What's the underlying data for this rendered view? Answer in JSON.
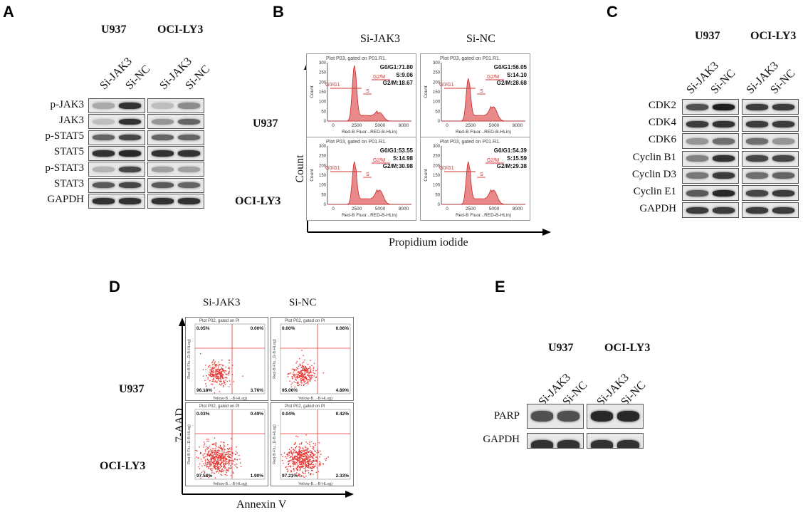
{
  "panelA": {
    "letter": "A",
    "cell_lines": [
      "U937",
      "OCI-LY3"
    ],
    "lanes": [
      "Si-JAK3",
      "Si-NC",
      "Si-JAK3",
      "Si-NC"
    ],
    "rows": [
      "p-JAK3",
      "JAK3",
      "p-STAT5",
      "STAT5",
      "p-STAT3",
      "STAT3",
      "GAPDH"
    ]
  },
  "panelB": {
    "letter": "B",
    "columns": [
      "Si-JAK3",
      "Si-NC"
    ],
    "rows": [
      "U937",
      "OCI-LY3"
    ],
    "y_axis": "Count",
    "x_axis": "Propidium iodide",
    "plot_title": "Plot P03, gated on P01.R1.",
    "plot_xlabel": "Red-B Fluor...RED-B-HLin)",
    "plot_ylabel": "Count",
    "x_ticks": [
      "0",
      "2500",
      "5000",
      "8000"
    ],
    "y_ticks": [
      "0",
      "50",
      "100",
      "150",
      "200",
      "250",
      "300"
    ],
    "gate_labels": [
      "G0/G1",
      "S",
      "G2/M"
    ],
    "stats": [
      [
        "G0/G1:71.80",
        "S:9.06",
        "G2/M:18.67"
      ],
      [
        "G0/G1:56.05",
        "S:14.10",
        "G2/M:28.68"
      ],
      [
        "G0/G1:53.55",
        "S:14.98",
        "G2/M:30.98"
      ],
      [
        "G0/G1:54.39",
        "S:15.59",
        "G2/M:29.38"
      ]
    ]
  },
  "panelC": {
    "letter": "C",
    "cell_lines": [
      "U937",
      "OCI-LY3"
    ],
    "lanes": [
      "Si-JAK3",
      "Si-NC",
      "Si-JAK3",
      "Si-NC"
    ],
    "rows": [
      "CDK2",
      "CDK4",
      "CDK6",
      "Cyclin B1",
      "Cyclin D3",
      "Cyclin E1",
      "GAPDH"
    ]
  },
  "panelD": {
    "letter": "D",
    "columns": [
      "Si-JAK3",
      "Si-NC"
    ],
    "rows": [
      "U937",
      "OCI-LY3"
    ],
    "y_axis": "7-AAD",
    "x_axis": "Annexin V",
    "plot_title": "Plot P02, gated on Pl",
    "plot_xlabel": "Yellow-B...-B-HLog)",
    "plot_ylabel": "Red-B Flu...D-B-HLog)",
    "quadrants": [
      [
        "0.05%",
        "0.00%",
        "96.18%",
        "3.76%"
      ],
      [
        "0.00%",
        "0.06%",
        "95.06%",
        "4.89%"
      ],
      [
        "0.03%",
        "0.49%",
        "97.58%",
        "1.90%"
      ],
      [
        "0.04%",
        "0.42%",
        "97.21%",
        "2.33%"
      ]
    ]
  },
  "panelE": {
    "letter": "E",
    "cell_lines": [
      "U937",
      "OCI-LY3"
    ],
    "lanes": [
      "Si-JAK3",
      "Si-NC",
      "Si-JAK3",
      "Si-NC"
    ],
    "rows": [
      "PARP",
      "GAPDH"
    ]
  },
  "colors": {
    "histogram_fill": "#e88a8a",
    "histogram_stroke": "#c62828",
    "gate_color": "#d32f2f",
    "dot_color": "#e53935"
  }
}
